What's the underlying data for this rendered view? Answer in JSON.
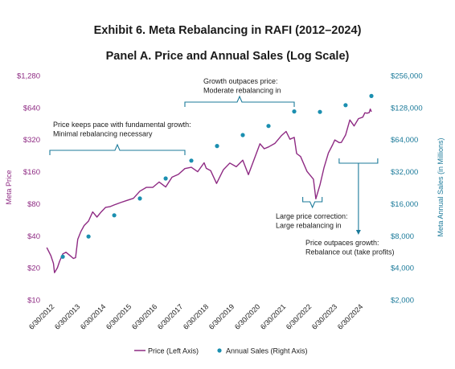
{
  "title": "Exhibit 6. Meta Rebalancing in RAFI (2012–2024)",
  "subtitle": "Panel A. Price and Annual Sales (Log Scale)",
  "colors": {
    "price": "#8e2a83",
    "sales": "#1b8fb0",
    "bracket": "#1b7a9a"
  },
  "chart_data": {
    "type": "line",
    "title": "Exhibit 6. Meta Rebalancing in RAFI (2012–2024)",
    "subtitle": "Panel A. Price and Annual Sales (Log Scale)",
    "yscale": "log",
    "ylabel_left": "Meta Price",
    "ylabel_right": "Meta Annual Sales (in Millions)",
    "yticks_left": [
      "$10",
      "$20",
      "$40",
      "$80",
      "$160",
      "$320",
      "$640",
      "$1,280"
    ],
    "yticks_right": [
      "$2,000",
      "$4,000",
      "$8,000",
      "$16,000",
      "$32,000",
      "$64,000",
      "$128,000",
      "$256,000"
    ],
    "ylim_left": [
      10,
      1280
    ],
    "ylim_right": [
      2000,
      256000
    ],
    "xlim": [
      "2012-06-30",
      "2024-12-31"
    ],
    "xticks": [
      "6/30/2012",
      "6/30/2013",
      "6/30/2014",
      "6/30/2015",
      "6/30/2016",
      "6/30/2017",
      "6/30/2018",
      "6/30/2019",
      "6/30/2020",
      "6/30/2021",
      "6/30/2022",
      "6/30/2023",
      "6/30/2024"
    ],
    "series": [
      {
        "name": "Price (Left Axis)",
        "axis": "left",
        "points": [
          [
            "2012-05-18",
            31
          ],
          [
            "2012-07-15",
            26
          ],
          [
            "2012-08-20",
            22
          ],
          [
            "2012-09-04",
            18
          ],
          [
            "2012-10-15",
            20
          ],
          [
            "2012-11-15",
            23
          ],
          [
            "2012-12-31",
            27
          ],
          [
            "2013-02-15",
            28
          ],
          [
            "2013-04-15",
            26
          ],
          [
            "2013-05-31",
            24.5
          ],
          [
            "2013-06-30",
            24.9
          ],
          [
            "2013-07-31",
            37
          ],
          [
            "2013-09-15",
            44
          ],
          [
            "2013-10-31",
            50
          ],
          [
            "2013-12-31",
            55
          ],
          [
            "2014-02-28",
            67
          ],
          [
            "2014-04-30",
            60
          ],
          [
            "2014-06-30",
            67
          ],
          [
            "2014-08-31",
            74
          ],
          [
            "2014-10-31",
            75
          ],
          [
            "2014-12-31",
            78
          ],
          [
            "2015-03-31",
            82
          ],
          [
            "2015-06-30",
            86
          ],
          [
            "2015-09-30",
            90
          ],
          [
            "2015-12-31",
            105
          ],
          [
            "2016-03-31",
            114
          ],
          [
            "2016-06-30",
            114
          ],
          [
            "2016-09-30",
            128
          ],
          [
            "2016-12-31",
            115
          ],
          [
            "2017-03-31",
            142
          ],
          [
            "2017-06-30",
            151
          ],
          [
            "2017-09-30",
            171
          ],
          [
            "2017-12-31",
            176
          ],
          [
            "2018-03-31",
            160
          ],
          [
            "2018-06-30",
            194
          ],
          [
            "2018-07-31",
            172
          ],
          [
            "2018-09-30",
            164
          ],
          [
            "2018-12-24",
            124
          ],
          [
            "2019-03-31",
            167
          ],
          [
            "2019-06-30",
            193
          ],
          [
            "2019-09-30",
            178
          ],
          [
            "2019-12-31",
            205
          ],
          [
            "2020-03-20",
            150
          ],
          [
            "2020-06-30",
            227
          ],
          [
            "2020-08-31",
            293
          ],
          [
            "2020-10-31",
            263
          ],
          [
            "2020-12-31",
            273
          ],
          [
            "2021-03-31",
            295
          ],
          [
            "2021-06-30",
            348
          ],
          [
            "2021-09-07",
            382
          ],
          [
            "2021-10-31",
            323
          ],
          [
            "2021-12-31",
            336
          ],
          [
            "2022-02-03",
            237
          ],
          [
            "2022-03-31",
            222
          ],
          [
            "2022-06-30",
            161
          ],
          [
            "2022-09-30",
            136
          ],
          [
            "2022-11-03",
            89
          ],
          [
            "2022-12-31",
            120
          ],
          [
            "2023-02-28",
            175
          ],
          [
            "2023-04-30",
            240
          ],
          [
            "2023-06-30",
            287
          ],
          [
            "2023-07-31",
            318
          ],
          [
            "2023-09-30",
            300
          ],
          [
            "2023-10-31",
            301
          ],
          [
            "2023-12-31",
            354
          ],
          [
            "2024-02-29",
            490
          ],
          [
            "2024-04-30",
            430
          ],
          [
            "2024-06-30",
            504
          ],
          [
            "2024-08-31",
            521
          ],
          [
            "2024-09-30",
            572
          ],
          [
            "2024-10-31",
            567
          ],
          [
            "2024-11-30",
            574
          ],
          [
            "2024-12-15",
            620
          ],
          [
            "2024-12-31",
            585
          ]
        ]
      },
      {
        "name": "Annual Sales (Right Axis)",
        "axis": "right",
        "points": [
          [
            "2012-12-31",
            5089
          ],
          [
            "2013-12-31",
            7872
          ],
          [
            "2014-12-31",
            12466
          ],
          [
            "2015-12-31",
            17928
          ],
          [
            "2016-12-31",
            27638
          ],
          [
            "2017-12-31",
            40653
          ],
          [
            "2018-12-31",
            55838
          ],
          [
            "2019-12-31",
            70697
          ],
          [
            "2020-12-31",
            85965
          ],
          [
            "2021-12-31",
            117929
          ],
          [
            "2022-12-31",
            116609
          ],
          [
            "2023-12-31",
            134902
          ],
          [
            "2024-12-31",
            164501
          ]
        ]
      }
    ],
    "annotations": [
      {
        "id": "a1",
        "lines": [
          "Price keeps pace with fundamental growth:",
          "Minimal rebalancing necessary"
        ],
        "range": [
          "2012-06-30",
          "2017-09-30"
        ]
      },
      {
        "id": "a2",
        "lines": [
          "Growth outpaces price:",
          "Moderate rebalancing in"
        ],
        "range": [
          "2017-09-30",
          "2021-12-31"
        ]
      },
      {
        "id": "a3",
        "lines": [
          "Large price correction:",
          "Large rebalancing in"
        ],
        "range": [
          "2022-05-01",
          "2023-01-31"
        ]
      },
      {
        "id": "a4",
        "lines": [
          "Price outpaces growth:",
          "Rebalance out (take profits)"
        ],
        "range": [
          "2023-09-30",
          "2025-03-31"
        ]
      }
    ],
    "legend": [
      "Price (Left Axis)",
      "Annual Sales (Right Axis)"
    ],
    "legend_position": "bottom",
    "grid": false
  }
}
